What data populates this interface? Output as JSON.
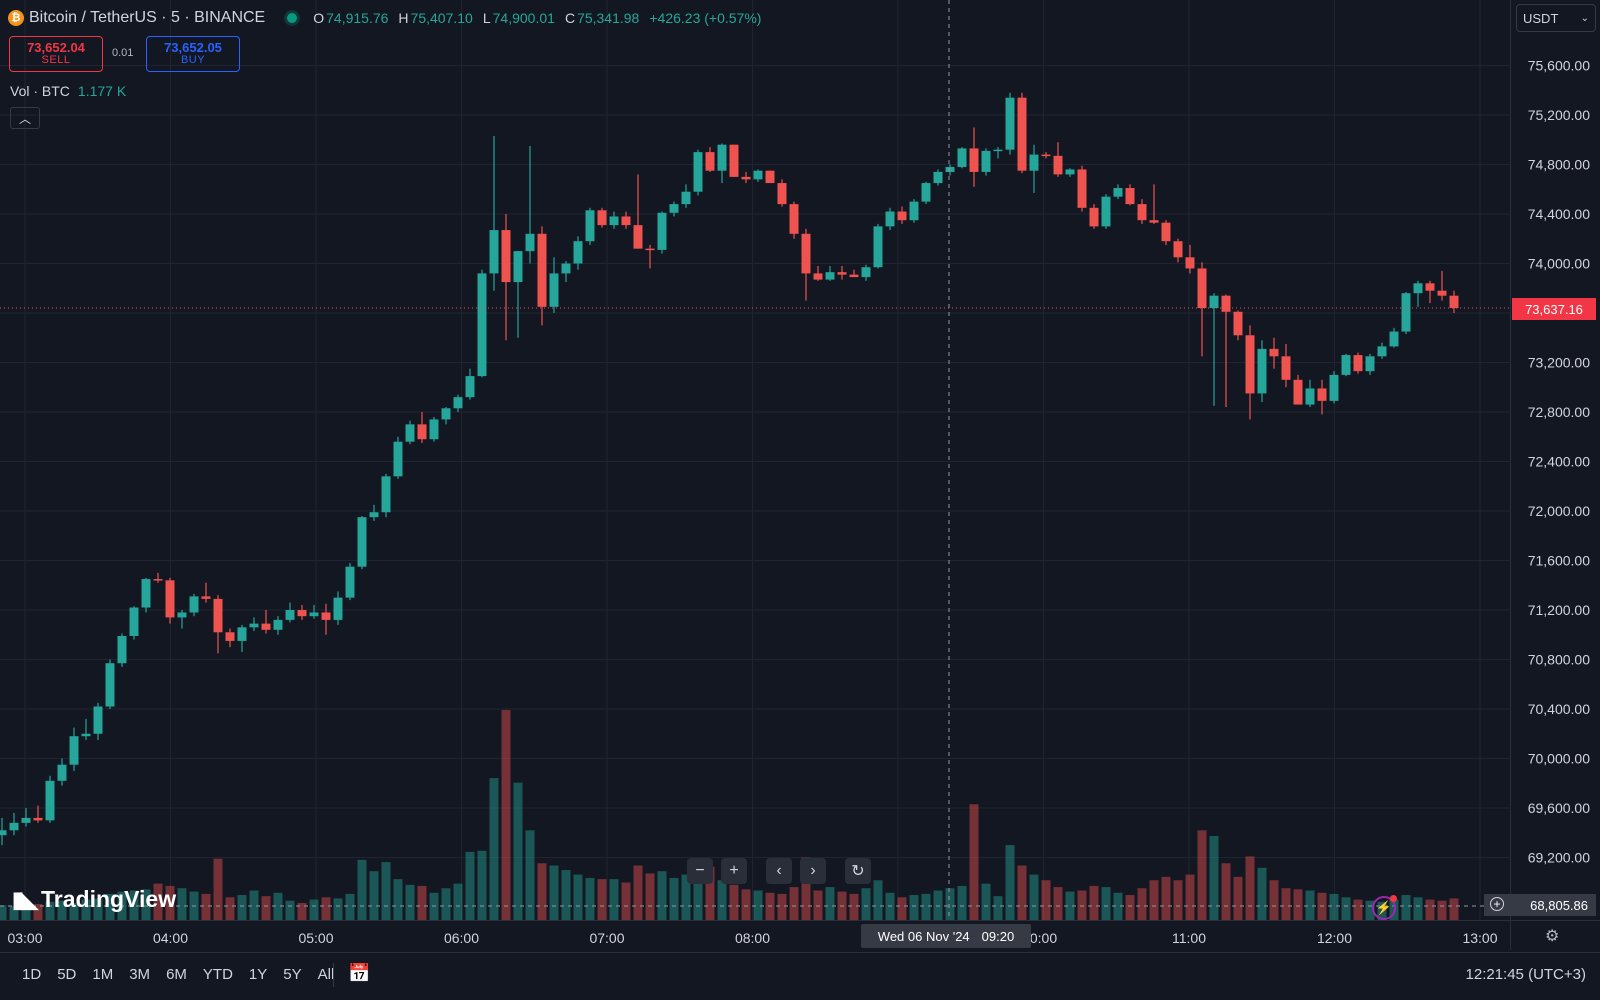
{
  "header": {
    "coin_icon": "₿",
    "symbol": "Bitcoin / TetherUS · 5 · BINANCE",
    "ohlc": {
      "o_label": "O",
      "o": "74,915.76",
      "h_label": "H",
      "h": "75,407.10",
      "l_label": "L",
      "l": "74,900.01",
      "c_label": "C",
      "c": "75,341.98",
      "change": "+426.23 (+0.57%)"
    }
  },
  "trade": {
    "sell_price": "73,652.04",
    "sell_label": "SELL",
    "spread": "0.01",
    "buy_price": "73,652.05",
    "buy_label": "BUY"
  },
  "volume_legend": {
    "label": "Vol · BTC",
    "value": "1.177 K"
  },
  "currency": "USDT",
  "logo_text": "TradingView",
  "current_price_tag": "73,637.16",
  "crosshair": {
    "date": "Wed 06 Nov '24",
    "time": "09:20",
    "price": "68,805.86"
  },
  "bottom": {
    "ranges": [
      "1D",
      "5D",
      "1M",
      "3M",
      "6M",
      "YTD",
      "1Y",
      "5Y",
      "All"
    ],
    "clock": "12:21:45 (UTC+3)"
  },
  "colors": {
    "up": "#26a69a",
    "down": "#ef5350",
    "bg": "#131722",
    "grid": "#1f2430"
  },
  "chart_data": {
    "type": "candlestick",
    "y_ticks": [
      69200,
      69600,
      70000,
      70400,
      70800,
      71200,
      71600,
      72000,
      72400,
      72800,
      73200,
      73600,
      74000,
      74400,
      74800,
      75200,
      75600
    ],
    "y_range": [
      68800,
      75900
    ],
    "x_ticks": [
      "03:00",
      "04:00",
      "05:00",
      "06:00",
      "07:00",
      "08:00",
      "",
      "0:00",
      "11:00",
      "12:00",
      "13:00"
    ],
    "interval_minutes": 5,
    "time_range": [
      "03:00",
      "12:20"
    ],
    "candles": [
      [
        69380,
        69520,
        69300,
        69420
      ],
      [
        69420,
        69560,
        69380,
        69480
      ],
      [
        69480,
        69600,
        69450,
        69520
      ],
      [
        69520,
        69620,
        69480,
        69500
      ],
      [
        69500,
        69860,
        69480,
        69820
      ],
      [
        69820,
        70000,
        69780,
        69950
      ],
      [
        69950,
        70250,
        69900,
        70180
      ],
      [
        70180,
        70320,
        70150,
        70200
      ],
      [
        70200,
        70450,
        70150,
        70420
      ],
      [
        70420,
        70800,
        70400,
        70770
      ],
      [
        70770,
        71010,
        70740,
        70990
      ],
      [
        70990,
        71230,
        70960,
        71220
      ],
      [
        71220,
        71460,
        71180,
        71450
      ],
      [
        71450,
        71500,
        71420,
        71440
      ],
      [
        71440,
        71460,
        71090,
        71140
      ],
      [
        71140,
        71200,
        71050,
        71180
      ],
      [
        71180,
        71330,
        71150,
        71310
      ],
      [
        71310,
        71420,
        71260,
        71290
      ],
      [
        71290,
        71320,
        70850,
        71020
      ],
      [
        71020,
        71050,
        70900,
        70950
      ],
      [
        70950,
        71080,
        70860,
        71060
      ],
      [
        71060,
        71140,
        71030,
        71090
      ],
      [
        71090,
        71200,
        71010,
        71040
      ],
      [
        71040,
        71150,
        71000,
        71120
      ],
      [
        71120,
        71260,
        71100,
        71200
      ],
      [
        71200,
        71240,
        71120,
        71150
      ],
      [
        71150,
        71240,
        71130,
        71180
      ],
      [
        71180,
        71250,
        71000,
        71120
      ],
      [
        71120,
        71350,
        71080,
        71300
      ],
      [
        71300,
        71580,
        71280,
        71550
      ],
      [
        71550,
        71960,
        71530,
        71950
      ],
      [
        71950,
        72050,
        71920,
        71990
      ],
      [
        71990,
        72300,
        71950,
        72280
      ],
      [
        72280,
        72600,
        72260,
        72560
      ],
      [
        72560,
        72730,
        72540,
        72700
      ],
      [
        72700,
        72800,
        72550,
        72580
      ],
      [
        72580,
        72760,
        72560,
        72740
      ],
      [
        72740,
        72840,
        72700,
        72830
      ],
      [
        72830,
        72940,
        72800,
        72920
      ],
      [
        72920,
        73150,
        72900,
        73090
      ],
      [
        73090,
        73950,
        73080,
        73920
      ],
      [
        73920,
        75030,
        73780,
        74270
      ],
      [
        74270,
        74400,
        73380,
        73850
      ],
      [
        73850,
        74100,
        73400,
        74100
      ],
      [
        74100,
        74950,
        74000,
        74240
      ],
      [
        74240,
        74300,
        73500,
        73650
      ],
      [
        73650,
        74050,
        73600,
        73920
      ],
      [
        73920,
        74020,
        73850,
        74000
      ],
      [
        74000,
        74220,
        73950,
        74180
      ],
      [
        74180,
        74450,
        74150,
        74430
      ],
      [
        74430,
        74450,
        74290,
        74310
      ],
      [
        74310,
        74420,
        74280,
        74380
      ],
      [
        74380,
        74420,
        74280,
        74310
      ],
      [
        74310,
        74720,
        74120,
        74120
      ],
      [
        74120,
        74150,
        73960,
        74110
      ],
      [
        74110,
        74420,
        74080,
        74410
      ],
      [
        74410,
        74500,
        74380,
        74480
      ],
      [
        74480,
        74640,
        74450,
        74580
      ],
      [
        74580,
        74920,
        74550,
        74900
      ],
      [
        74900,
        74940,
        74740,
        74750
      ],
      [
        74750,
        74970,
        74650,
        74960
      ],
      [
        74960,
        74960,
        74700,
        74700
      ],
      [
        74700,
        74740,
        74650,
        74680
      ],
      [
        74680,
        74760,
        74660,
        74750
      ],
      [
        74750,
        74750,
        74650,
        74650
      ],
      [
        74650,
        74680,
        74460,
        74480
      ],
      [
        74480,
        74500,
        74200,
        74240
      ],
      [
        74240,
        74280,
        73700,
        73920
      ],
      [
        73920,
        73980,
        73860,
        73870
      ],
      [
        73870,
        73980,
        73860,
        73930
      ],
      [
        73930,
        73980,
        73870,
        73910
      ],
      [
        73910,
        73950,
        73890,
        73890
      ],
      [
        73890,
        73990,
        73860,
        73970
      ],
      [
        73970,
        74320,
        73960,
        74300
      ],
      [
        74300,
        74450,
        74270,
        74420
      ],
      [
        74420,
        74460,
        74320,
        74350
      ],
      [
        74350,
        74520,
        74330,
        74500
      ],
      [
        74500,
        74660,
        74480,
        74650
      ],
      [
        74650,
        74760,
        74630,
        74740
      ],
      [
        74740,
        74800,
        74710,
        74780
      ],
      [
        74780,
        74940,
        74770,
        74930
      ],
      [
        74930,
        75100,
        74620,
        74740
      ],
      [
        74740,
        74930,
        74710,
        74910
      ],
      [
        74910,
        74940,
        74850,
        74920
      ],
      [
        74920,
        75380,
        74880,
        75340
      ],
      [
        75340,
        75380,
        74730,
        74750
      ],
      [
        74750,
        74960,
        74570,
        74880
      ],
      [
        74880,
        74900,
        74850,
        74870
      ],
      [
        74870,
        74980,
        74700,
        74720
      ],
      [
        74720,
        74770,
        74700,
        74760
      ],
      [
        74760,
        74790,
        74420,
        74450
      ],
      [
        74450,
        74480,
        74280,
        74300
      ],
      [
        74300,
        74560,
        74280,
        74540
      ],
      [
        74540,
        74640,
        74520,
        74610
      ],
      [
        74610,
        74640,
        74470,
        74480
      ],
      [
        74480,
        74520,
        74320,
        74350
      ],
      [
        74350,
        74640,
        74320,
        74330
      ],
      [
        74330,
        74350,
        74150,
        74180
      ],
      [
        74180,
        74200,
        74010,
        74050
      ],
      [
        74050,
        74150,
        73920,
        73960
      ],
      [
        73960,
        74010,
        73250,
        73640
      ],
      [
        73640,
        73760,
        72850,
        73740
      ],
      [
        73740,
        73750,
        72840,
        73610
      ],
      [
        73610,
        73620,
        73380,
        73420
      ],
      [
        73420,
        73500,
        72740,
        72950
      ],
      [
        72950,
        73380,
        72880,
        73310
      ],
      [
        73310,
        73400,
        73150,
        73250
      ],
      [
        73250,
        73350,
        73000,
        73060
      ],
      [
        73060,
        73100,
        72860,
        72860
      ],
      [
        72860,
        73060,
        72840,
        72990
      ],
      [
        72990,
        73060,
        72780,
        72890
      ],
      [
        72890,
        73130,
        72870,
        73100
      ],
      [
        73100,
        73270,
        73090,
        73260
      ],
      [
        73260,
        73280,
        73110,
        73130
      ],
      [
        73130,
        73270,
        73100,
        73250
      ],
      [
        73250,
        73360,
        73230,
        73330
      ],
      [
        73330,
        73480,
        73320,
        73450
      ],
      [
        73450,
        73770,
        73430,
        73760
      ],
      [
        73760,
        73860,
        73650,
        73840
      ],
      [
        73840,
        73860,
        73680,
        73780
      ],
      [
        73780,
        73940,
        73700,
        73740
      ],
      [
        73740,
        73780,
        73600,
        73640
      ]
    ],
    "volume": [
      130,
      120,
      110,
      140,
      160,
      170,
      150,
      180,
      190,
      230,
      250,
      260,
      270,
      320,
      300,
      280,
      250,
      230,
      540,
      200,
      220,
      260,
      210,
      240,
      170,
      150,
      180,
      200,
      190,
      230,
      530,
      430,
      510,
      360,
      310,
      300,
      240,
      280,
      320,
      600,
      610,
      1250,
      1850,
      1210,
      790,
      500,
      480,
      440,
      400,
      370,
      360,
      360,
      330,
      480,
      410,
      430,
      370,
      400,
      520,
      470,
      350,
      310,
      270,
      260,
      240,
      230,
      290,
      550,
      260,
      290,
      250,
      230,
      280,
      350,
      240,
      200,
      220,
      230,
      260,
      280,
      300,
      1020,
      320,
      210,
      660,
      480,
      400,
      350,
      290,
      250,
      260,
      300,
      290,
      240,
      220,
      280,
      350,
      380,
      350,
      400,
      790,
      740,
      500,
      380,
      560,
      460,
      350,
      280,
      270,
      260,
      240,
      230,
      200,
      180,
      170,
      160,
      180,
      220,
      200,
      180,
      170,
      190
    ]
  }
}
